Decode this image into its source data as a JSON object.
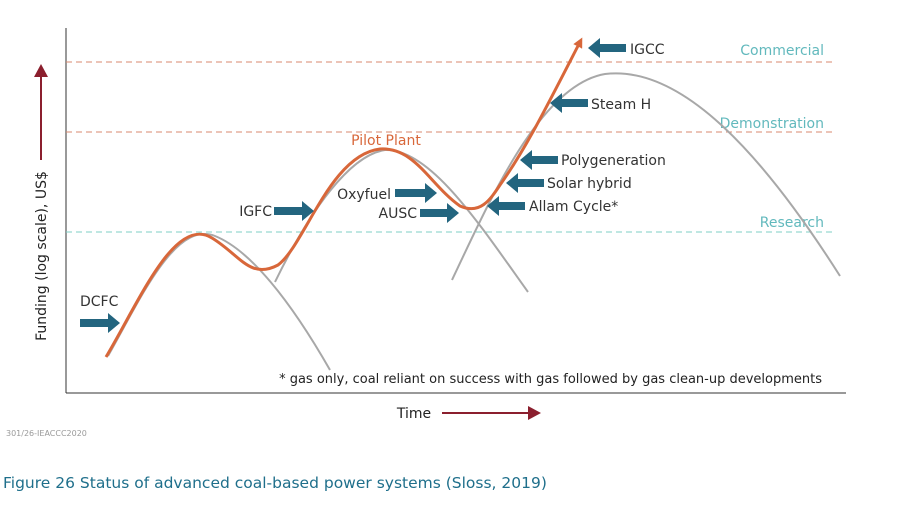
{
  "colors": {
    "orange": "#d8673a",
    "gray": "#a8a8a8",
    "teal_arrow": "#23657f",
    "commercial_line": "#d98a6f",
    "research_line": "#7fcfc6",
    "stage_text": "#62b9bd",
    "dark_red": "#8b1f2e",
    "caption": "#1f6f8b"
  },
  "axes": {
    "y_label": "Funding (log scale), US$",
    "x_label": "Time"
  },
  "stages": {
    "commercial": "Commercial",
    "demonstration": "Demonstration",
    "research": "Research"
  },
  "curve_label": "Pilot Plant",
  "technologies": {
    "dcfc": "DCFC",
    "igfc": "IGFC",
    "oxyfuel": "Oxyfuel",
    "ausc": "AUSC",
    "allam": "Allam Cycle*",
    "solar": "Solar hybrid",
    "polygen": "Polygeneration",
    "steamh": "Steam H",
    "igcc": "IGCC"
  },
  "footnote": "* gas only, coal reliant on success with gas followed by gas clean-up developments",
  "reference": "301/26-IEACCC2020",
  "caption": "Figure 26 Status of advanced coal-based power systems (Sloss, 2019)"
}
